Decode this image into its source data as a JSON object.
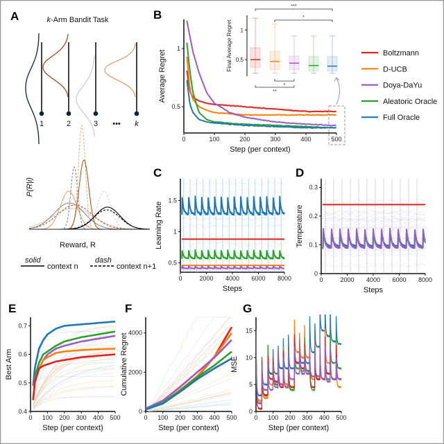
{
  "colors": {
    "Boltzmann": "#e3211c",
    "D-UCB": "#ff7f0e",
    "Doya-DaYu": "#9a5cc6",
    "Aleatoric Oracle": "#2ca02c",
    "Full Oracle": "#1f77b4"
  },
  "panel_labels": [
    "A",
    "B",
    "C",
    "D",
    "E",
    "F",
    "G"
  ],
  "panel_a": {
    "title_italic": "k",
    "title_rest": "-Arm Bandit Task",
    "arm_labels": [
      "1",
      "2",
      "3",
      "k"
    ],
    "ellipsis": "•••",
    "ylabel": "P(R|i)",
    "xlabel": "Reward, R",
    "legend": {
      "solid": "solid",
      "solid_text": "context n",
      "dash": "dash",
      "dash_text": "context n+1"
    }
  },
  "legend": [
    "Boltzmann",
    "D-UCB",
    "Doya-DaYu",
    "Aleatoric Oracle",
    "Full Oracle"
  ],
  "chart_data": [
    {
      "panel": "B",
      "type": "line",
      "xlabel": "Step (per context)",
      "ylabel": "Average Regret",
      "xlim": [
        0,
        500
      ],
      "ylim": [
        0.275,
        1.25
      ],
      "xticks": [
        0,
        100,
        200,
        300,
        400,
        500
      ],
      "yticks": [
        0.5,
        1
      ],
      "x": [
        10,
        20,
        30,
        50,
        75,
        100,
        150,
        200,
        300,
        400,
        500
      ],
      "series": [
        {
          "name": "Boltzmann",
          "values": [
            0.81,
            0.63,
            0.58,
            0.55,
            0.53,
            0.52,
            0.51,
            0.5,
            0.48,
            0.46,
            0.46
          ]
        },
        {
          "name": "D-UCB",
          "values": [
            0.93,
            0.65,
            0.56,
            0.5,
            0.47,
            0.45,
            0.44,
            0.43,
            0.43,
            0.43,
            0.43
          ]
        },
        {
          "name": "Doya-DaYu",
          "values": [
            1.24,
            1.1,
            0.97,
            0.79,
            0.62,
            0.53,
            0.45,
            0.41,
            0.37,
            0.35,
            0.34
          ]
        },
        {
          "name": "Aleatoric Oracle",
          "values": [
            1.05,
            0.8,
            0.62,
            0.45,
            0.39,
            0.37,
            0.36,
            0.35,
            0.34,
            0.33,
            0.32
          ]
        },
        {
          "name": "Full Oracle",
          "values": [
            0.73,
            0.52,
            0.45,
            0.39,
            0.37,
            0.36,
            0.35,
            0.34,
            0.33,
            0.32,
            0.32
          ]
        }
      ]
    },
    {
      "panel": "B-inset",
      "type": "box",
      "ylabel": "Final Average Regret",
      "ylim": [
        0.22,
        1.25
      ],
      "yticks": [
        0.5,
        1
      ],
      "boxes": [
        {
          "name": "Boltzmann",
          "min": 0.27,
          "q1": 0.37,
          "median": 0.5,
          "q3": 0.7,
          "max": 1.2
        },
        {
          "name": "D-UCB",
          "min": 0.27,
          "q1": 0.33,
          "median": 0.47,
          "q3": 0.64,
          "max": 1.1
        },
        {
          "name": "Doya-DaYu",
          "min": 0.27,
          "q1": 0.33,
          "median": 0.44,
          "q3": 0.56,
          "max": 0.9
        },
        {
          "name": "Aleatoric Oracle",
          "min": 0.27,
          "q1": 0.31,
          "median": 0.4,
          "q3": 0.55,
          "max": 0.9
        },
        {
          "name": "Full Oracle",
          "min": 0.27,
          "q1": 0.31,
          "median": 0.39,
          "q3": 0.55,
          "max": 0.9
        }
      ],
      "significance": [
        {
          "from": "Boltzmann",
          "to": "Full Oracle",
          "label": "***",
          "position": "top"
        },
        {
          "from": "D-UCB",
          "to": "Full Oracle",
          "label": "*",
          "position": "top"
        },
        {
          "from": "D-UCB",
          "to": "Doya-DaYu",
          "label": "*",
          "position": "bottom"
        },
        {
          "from": "Boltzmann",
          "to": "Doya-DaYu",
          "label": "**",
          "position": "bottom"
        }
      ]
    },
    {
      "panel": "C",
      "type": "line",
      "xlabel": "Steps",
      "ylabel": "Learning Rate",
      "xlim": [
        0,
        8000
      ],
      "ylim": [
        0.35,
        1.85
      ],
      "xticks": [
        0,
        2000,
        4000,
        6000,
        8000
      ],
      "yticks": [
        0.5,
        1,
        1.5
      ],
      "spike_interval": 500,
      "series": [
        {
          "name": "Full Oracle",
          "peak": 1.6,
          "trough": 1.28
        },
        {
          "name": "Aleatoric Oracle",
          "peak": 0.72,
          "trough": 0.57
        },
        {
          "name": "Boltzmann",
          "constant": 0.88
        },
        {
          "name": "D-UCB",
          "constant": 0.46
        },
        {
          "name": "Doya-DaYu",
          "peak": 0.45,
          "trough": 0.41
        }
      ]
    },
    {
      "panel": "D",
      "type": "line",
      "xlabel": "Steps",
      "ylabel": "Temperature",
      "xlim": [
        0,
        8000
      ],
      "ylim": [
        0,
        0.33
      ],
      "xticks": [
        0,
        2000,
        4000,
        6000,
        8000
      ],
      "yticks": [
        0,
        0.1,
        0.2,
        0.3
      ],
      "spike_interval": 640,
      "series": [
        {
          "name": "Boltzmann",
          "constant": 0.24
        },
        {
          "name": "Full Oracle",
          "peak": 0.15,
          "trough": 0.095
        },
        {
          "name": "Aleatoric Oracle",
          "peak": 0.15,
          "trough": 0.09
        },
        {
          "name": "Doya-DaYu",
          "peak": 0.155,
          "trough": 0.09
        }
      ]
    },
    {
      "panel": "E",
      "type": "line",
      "xlabel": "Step (per context)",
      "ylabel": "Best Arm",
      "xlim": [
        0,
        500
      ],
      "ylim": [
        0.4,
        0.73
      ],
      "xticks": [
        0,
        100,
        200,
        300,
        400,
        500
      ],
      "yticks": [
        0.4,
        0.5,
        0.6,
        0.7
      ],
      "x": [
        15,
        25,
        50,
        75,
        100,
        150,
        200,
        300,
        400,
        500
      ],
      "series": [
        {
          "name": "Full Oracle",
          "values": [
            0.49,
            0.55,
            0.62,
            0.65,
            0.67,
            0.69,
            0.7,
            0.705,
            0.71,
            0.715
          ]
        },
        {
          "name": "Aleatoric Oracle",
          "values": [
            0.49,
            0.52,
            0.57,
            0.6,
            0.61,
            0.63,
            0.645,
            0.66,
            0.67,
            0.68
          ]
        },
        {
          "name": "Doya-DaYu",
          "values": [
            0.49,
            0.51,
            0.55,
            0.58,
            0.6,
            0.62,
            0.63,
            0.645,
            0.655,
            0.665
          ]
        },
        {
          "name": "D-UCB",
          "values": [
            0.44,
            0.5,
            0.55,
            0.58,
            0.59,
            0.605,
            0.61,
            0.615,
            0.618,
            0.62
          ]
        },
        {
          "name": "Boltzmann",
          "values": [
            0.44,
            0.5,
            0.55,
            0.56,
            0.565,
            0.575,
            0.58,
            0.59,
            0.595,
            0.6
          ]
        }
      ]
    },
    {
      "panel": "F",
      "type": "line",
      "xlabel": "Step (per context)",
      "ylabel": "Cumulative Regret",
      "xlim": [
        0,
        500
      ],
      "ylim": [
        0,
        4800
      ],
      "xticks": [
        0,
        100,
        200,
        300,
        400,
        500
      ],
      "yticks": [
        0,
        2000,
        4000
      ],
      "x": [
        0,
        100,
        200,
        300,
        400,
        500
      ],
      "series": [
        {
          "name": "Boltzmann",
          "values": [
            100,
            450,
            1050,
            1750,
            2800,
            4300
          ]
        },
        {
          "name": "D-UCB",
          "values": [
            100,
            450,
            1100,
            1800,
            2800,
            4000
          ]
        },
        {
          "name": "Doya-DaYu",
          "values": [
            150,
            550,
            1250,
            2000,
            2750,
            3650
          ]
        },
        {
          "name": "Aleatoric Oracle",
          "values": [
            100,
            450,
            1050,
            1750,
            2350,
            3050
          ]
        },
        {
          "name": "Full Oracle",
          "values": [
            100,
            400,
            1000,
            1650,
            2200,
            2700
          ]
        }
      ]
    },
    {
      "panel": "G",
      "type": "line",
      "xlabel": "Step (per context)",
      "ylabel": "MSE",
      "xlim": [
        0,
        500
      ],
      "ylim": [
        0,
        17.5
      ],
      "xticks": [
        0,
        100,
        200,
        300,
        400,
        500
      ],
      "yticks": [
        0,
        5,
        10,
        15
      ],
      "x": [
        0,
        35,
        70,
        100,
        130,
        160,
        190,
        225,
        255,
        285,
        315,
        345,
        375,
        405,
        435,
        470
      ],
      "series": [
        {
          "name": "Full Oracle",
          "values": [
            3,
            5,
            7,
            7,
            8,
            8,
            8,
            9,
            9,
            9,
            11,
            12,
            15,
            14,
            13,
            12.5
          ]
        },
        {
          "name": "D-UCB",
          "values": [
            2,
            2.5,
            5,
            5.5,
            5,
            5,
            4,
            11,
            10,
            10,
            6,
            6,
            6,
            9,
            6,
            4.5
          ]
        },
        {
          "name": "Aleatoric Oracle",
          "values": [
            1.5,
            3,
            7,
            5,
            4.5,
            4.5,
            4,
            8,
            7.5,
            7.5,
            4,
            6,
            6,
            6,
            9,
            8
          ]
        },
        {
          "name": "Boltzmann",
          "values": [
            0.5,
            3,
            6,
            5.5,
            4.5,
            4.5,
            4.5,
            9,
            8,
            7,
            4.5,
            6,
            6,
            7,
            6,
            6
          ]
        },
        {
          "name": "Doya-DaYu",
          "values": [
            1.5,
            4,
            4,
            4.5,
            5,
            4.5,
            6,
            7,
            7,
            7,
            6.5,
            6.5,
            6,
            5.5,
            6,
            6
          ]
        }
      ]
    }
  ]
}
